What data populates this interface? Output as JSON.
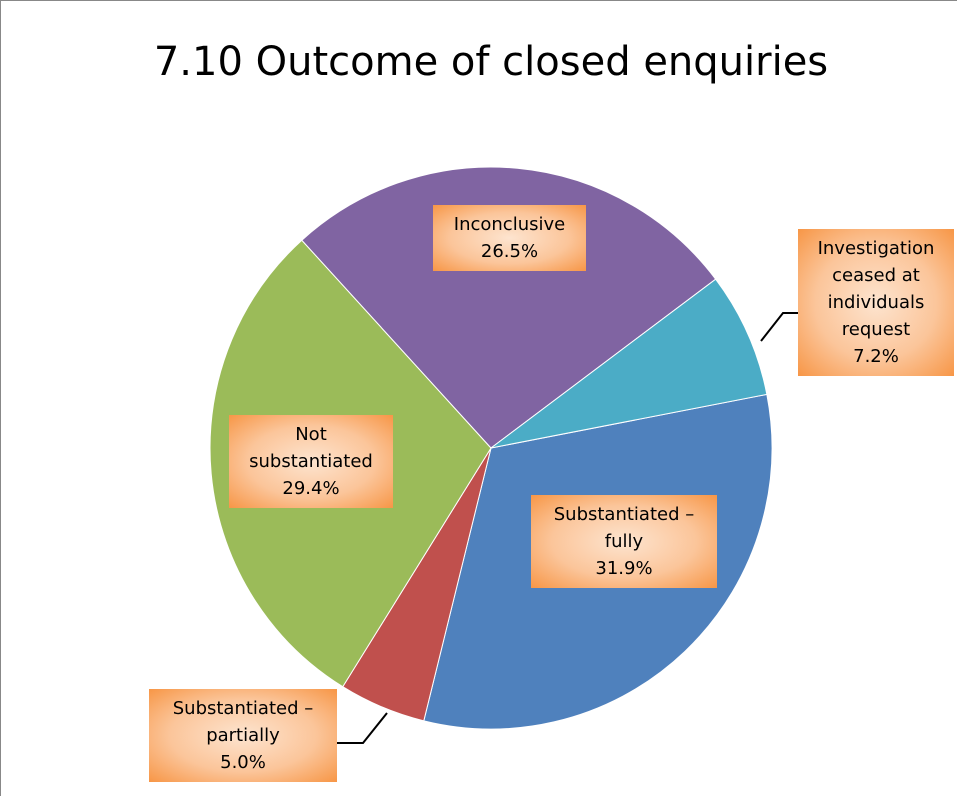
{
  "chart_data": {
    "type": "pie",
    "title": "7.10 Outcome of closed enquiries",
    "categories": [
      "Substantiated – fully",
      "Substantiated – partially",
      "Not substantiated",
      "Inconclusive",
      "Investigation ceased at individuals request"
    ],
    "values": [
      31.9,
      5.0,
      29.4,
      26.5,
      7.2
    ],
    "value_labels": [
      "31.9%",
      "5.0%",
      "29.4%",
      "26.5%",
      "7.2%"
    ],
    "colors": [
      "#4f81bd",
      "#c0504d",
      "#9bbb59",
      "#8064a2",
      "#4bacc6"
    ]
  }
}
